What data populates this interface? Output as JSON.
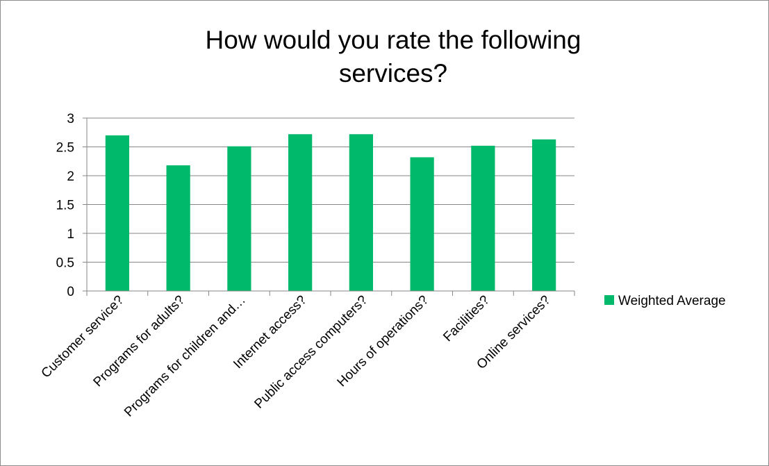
{
  "chart_data": {
    "type": "bar",
    "title_lines": [
      "How would you rate the following",
      "services?"
    ],
    "categories": [
      "Customer service?",
      "Programs for adults?",
      "Programs for children and…",
      "Internet access?",
      "Public access computers?",
      "Hours of operations?",
      "Facilities?",
      "Online services?"
    ],
    "series": [
      {
        "name": "Weighted Average",
        "color": "#00b96b",
        "values": [
          2.7,
          2.18,
          2.51,
          2.72,
          2.72,
          2.32,
          2.52,
          2.63
        ]
      }
    ],
    "yticks": [
      "0",
      "0.5",
      "1",
      "1.5",
      "2",
      "2.5",
      "3"
    ],
    "ylim": [
      0,
      3
    ],
    "grid": true,
    "legend": "right"
  }
}
